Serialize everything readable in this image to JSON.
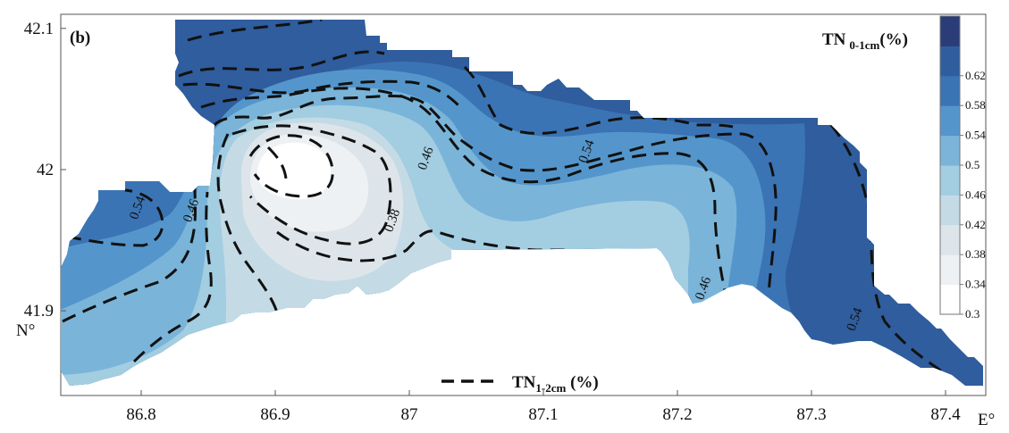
{
  "chart_data": {
    "type": "heatmap",
    "panel_label": "(b)",
    "colorbar_title_main": "TN",
    "colorbar_title_sub": "0-1cm",
    "colorbar_title_unit": "(%)",
    "legend_line_main": "TN",
    "legend_line_sub": "1-2cm",
    "legend_line_unit": " (%)",
    "xlabel": "E°",
    "ylabel": "N°",
    "xlim": [
      86.74,
      87.43
    ],
    "ylim": [
      41.84,
      42.11
    ],
    "x_ticks": [
      86.8,
      86.9,
      87.0,
      87.1,
      87.2,
      87.3,
      87.4
    ],
    "x_tick_labels": [
      "86.8",
      "86.9",
      "87",
      "87.1",
      "87.2",
      "87.3",
      "87.4"
    ],
    "y_ticks": [
      41.9,
      42.0,
      42.1
    ],
    "y_tick_labels": [
      "41.9",
      "42",
      "42.1"
    ],
    "colorbar_levels": [
      0.3,
      0.34,
      0.38,
      0.42,
      0.46,
      0.5,
      0.54,
      0.58,
      0.62
    ],
    "colorbar_labels": [
      "0.3",
      "0.34",
      "0.38",
      "0.42",
      "0.46",
      "0.5",
      "0.54",
      "0.58",
      "0.62"
    ],
    "colorbar_colors": [
      "#ffffff",
      "#eef1f3",
      "#dde5ea",
      "#c4dbe6",
      "#a3cde1",
      "#7ab4d9",
      "#5496cb",
      "#3b74b4",
      "#2f5d9d",
      "#2a3d78"
    ],
    "contour_labels": [
      {
        "text": "0.54",
        "x": 86.8,
        "y": 41.972
      },
      {
        "text": "0.46",
        "x": 86.84,
        "y": 41.97
      },
      {
        "text": "0.38",
        "x": 86.99,
        "y": 41.963
      },
      {
        "text": "0.46",
        "x": 87.015,
        "y": 42.007
      },
      {
        "text": "0.54",
        "x": 87.135,
        "y": 42.012
      },
      {
        "text": "0.46",
        "x": 87.222,
        "y": 41.915
      },
      {
        "text": "0.54",
        "x": 87.335,
        "y": 41.893
      }
    ]
  }
}
